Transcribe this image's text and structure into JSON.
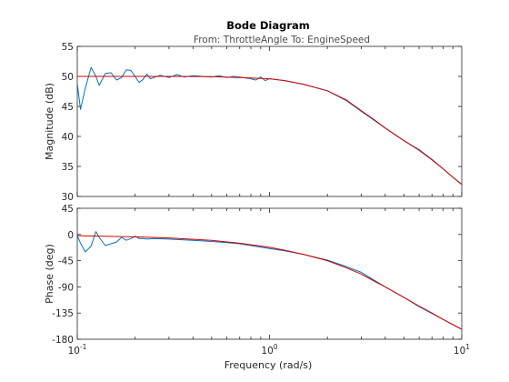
{
  "title": "Bode Diagram",
  "subtitle": "From: ThrottleAngle  To: EngineSpeed",
  "colors": {
    "measured": "#0072bd",
    "model": "#d40000",
    "axes": "#262626",
    "background": "#ffffff"
  },
  "chart_data": [
    {
      "type": "line",
      "panel": "magnitude",
      "ylabel": "Magnitude (dB)",
      "xscale": "log",
      "xlim": [
        0.1,
        10
      ],
      "ylim": [
        30,
        55
      ],
      "yticks": [
        30,
        35,
        40,
        45,
        50,
        55
      ],
      "grid": false,
      "series": [
        {
          "role": "measured",
          "x": [
            0.1,
            0.104,
            0.11,
            0.118,
            0.125,
            0.13,
            0.14,
            0.15,
            0.16,
            0.17,
            0.18,
            0.19,
            0.2,
            0.21,
            0.22,
            0.23,
            0.24,
            0.25,
            0.27,
            0.3,
            0.33,
            0.36,
            0.4,
            0.45,
            0.5,
            0.55,
            0.6,
            0.65,
            0.7,
            0.8,
            0.85,
            0.9,
            0.95,
            1.0,
            1.2,
            1.5,
            2.0,
            2.5,
            3.0,
            3.5,
            4.0,
            5.0,
            6.0,
            7.0,
            8.0,
            9.0,
            10.0
          ],
          "y": [
            48.8,
            44.5,
            48.0,
            51.5,
            50.0,
            48.5,
            50.5,
            50.6,
            49.4,
            49.8,
            51.1,
            51.0,
            50.0,
            49.0,
            49.5,
            50.4,
            49.6,
            49.8,
            50.2,
            49.8,
            50.3,
            49.9,
            50.1,
            50.0,
            49.9,
            50.1,
            49.8,
            50.0,
            49.9,
            49.6,
            49.4,
            49.9,
            49.3,
            49.6,
            49.3,
            48.7,
            47.6,
            46.0,
            44.2,
            42.7,
            41.4,
            39.3,
            37.8,
            36.2,
            34.6,
            33.2,
            32.0
          ]
        },
        {
          "role": "model",
          "x": [
            0.1,
            0.2,
            0.3,
            0.5,
            0.7,
            1.0,
            1.2,
            1.5,
            2.0,
            2.5,
            3.0,
            3.5,
            4.0,
            5.0,
            6.0,
            7.0,
            8.0,
            9.0,
            10.0
          ],
          "y": [
            50.0,
            50.0,
            50.0,
            49.95,
            49.8,
            49.6,
            49.3,
            48.7,
            47.6,
            46.1,
            44.3,
            42.8,
            41.4,
            39.3,
            37.7,
            36.1,
            34.6,
            33.2,
            32.0
          ]
        }
      ]
    },
    {
      "type": "line",
      "panel": "phase",
      "xlabel": "Frequency  (rad/s)",
      "ylabel": "Phase (deg)",
      "xscale": "log",
      "xlim": [
        0.1,
        10
      ],
      "ylim": [
        -180,
        45
      ],
      "yticks": [
        45,
        0,
        -45,
        -90,
        -135,
        -180
      ],
      "xticks": [
        0.1,
        1,
        10
      ],
      "xtick_labels": [
        {
          "base": "10",
          "exp": "-1"
        },
        {
          "base": "10",
          "exp": "0"
        },
        {
          "base": "10",
          "exp": "1"
        }
      ],
      "grid": false,
      "series": [
        {
          "role": "measured",
          "x": [
            0.1,
            0.104,
            0.11,
            0.118,
            0.125,
            0.13,
            0.14,
            0.15,
            0.16,
            0.17,
            0.18,
            0.19,
            0.2,
            0.21,
            0.22,
            0.23,
            0.25,
            0.3,
            0.35,
            0.4,
            0.5,
            0.6,
            0.7,
            0.8,
            1.0,
            1.2,
            1.5,
            2.0,
            2.5,
            3.0,
            4.0,
            5.0,
            6.0,
            8.0,
            10.0
          ],
          "y": [
            -2,
            -15,
            -30,
            -20,
            5,
            -5,
            -19,
            -16,
            -13,
            -5,
            -10,
            -7,
            -3,
            -7,
            -7,
            -8,
            -7,
            -8,
            -9,
            -10,
            -12,
            -14,
            -16,
            -19,
            -24,
            -28,
            -34,
            -44,
            -55,
            -65,
            -90,
            -108,
            -124,
            -146,
            -163
          ]
        },
        {
          "role": "model",
          "x": [
            0.1,
            0.2,
            0.3,
            0.5,
            0.7,
            1.0,
            1.2,
            1.5,
            2.0,
            2.5,
            3.0,
            3.5,
            4.0,
            5.0,
            6.0,
            7.0,
            8.0,
            9.0,
            10.0
          ],
          "y": [
            -2,
            -4,
            -6,
            -10,
            -15,
            -22,
            -27,
            -34,
            -45,
            -57,
            -68,
            -80,
            -90,
            -108,
            -123,
            -135,
            -146,
            -155,
            -163
          ]
        }
      ]
    }
  ]
}
